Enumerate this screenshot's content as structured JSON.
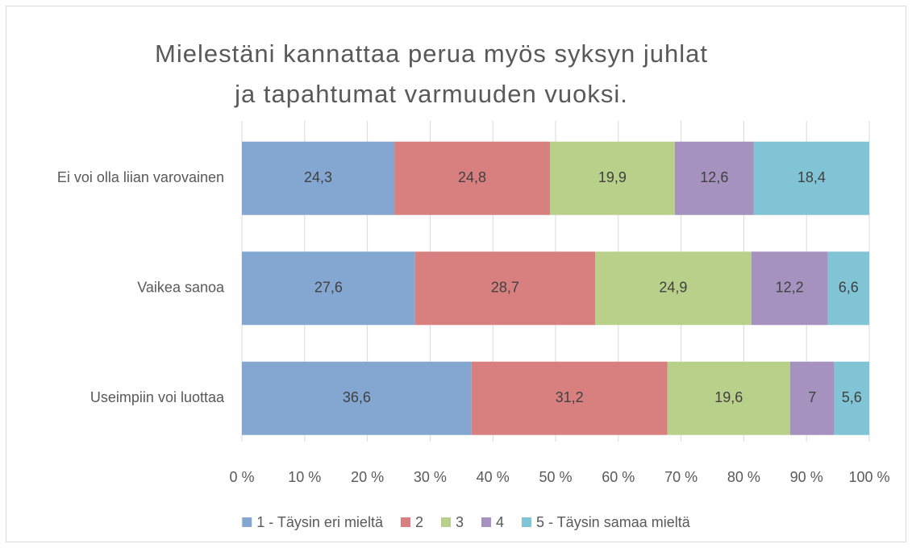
{
  "chart_data": {
    "type": "stacked-barh",
    "title": "Mielestäni kannattaa perua myös syksyn juhlat ja tapahtumat varmuuden vuoksi.",
    "categories": [
      "Ei voi olla liian varovainen",
      "Vaikea sanoa",
      "Useimpiin voi luottaa"
    ],
    "series": [
      {
        "name": "1 - Täysin eri mieltä",
        "color": "#84a7d1",
        "values": [
          24.3,
          27.6,
          36.6
        ],
        "value_labels": [
          "24,3",
          "27,6",
          "36,6"
        ]
      },
      {
        "name": "2",
        "color": "#d8807f",
        "values": [
          24.8,
          28.7,
          31.2
        ],
        "value_labels": [
          "24,8",
          "28,7",
          "31,2"
        ]
      },
      {
        "name": "3",
        "color": "#b9d08a",
        "values": [
          19.9,
          24.9,
          19.6
        ],
        "value_labels": [
          "19,9",
          "24,9",
          "19,6"
        ]
      },
      {
        "name": "4",
        "color": "#a592bf",
        "values": [
          12.6,
          12.2,
          7
        ],
        "value_labels": [
          "12,6",
          "12,2",
          "7"
        ]
      },
      {
        "name": "5 - Täysin samaa mieltä",
        "color": "#80c4d5",
        "values": [
          18.4,
          6.6,
          5.6
        ],
        "value_labels": [
          "18,4",
          "6,6",
          "5,6"
        ]
      }
    ],
    "xlim": [
      0,
      100
    ],
    "xticks": [
      {
        "value": 0,
        "label": "0 %"
      },
      {
        "value": 10,
        "label": "10 %"
      },
      {
        "value": 20,
        "label": "20 %"
      },
      {
        "value": 30,
        "label": "30 %"
      },
      {
        "value": 40,
        "label": "40 %"
      },
      {
        "value": 50,
        "label": "50 %"
      },
      {
        "value": 60,
        "label": "60 %"
      },
      {
        "value": 70,
        "label": "70 %"
      },
      {
        "value": 80,
        "label": "80 %"
      },
      {
        "value": 90,
        "label": "90 %"
      },
      {
        "value": 100,
        "label": "100 %"
      }
    ],
    "grid": true,
    "legend": "bottom"
  }
}
